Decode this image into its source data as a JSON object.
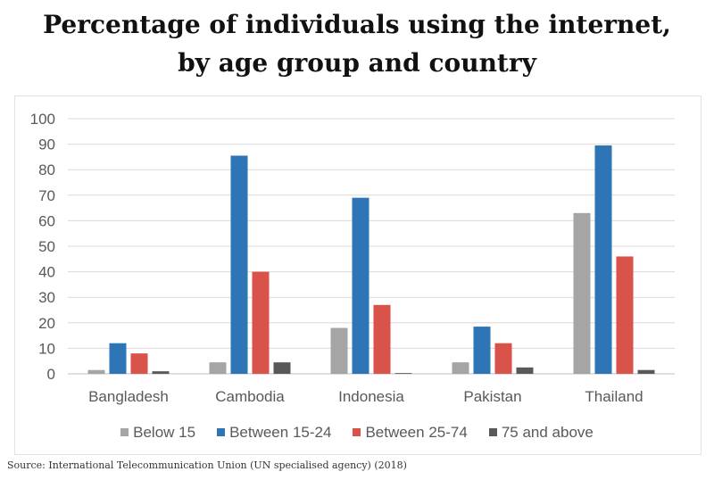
{
  "title_line1": "Percentage of individuals using the internet,",
  "title_line2": "by age group and country",
  "source": "Source: International Telecommunication Union (UN specialised agency) (2018)",
  "chart_data": {
    "type": "bar",
    "title": "Percentage of individuals using the internet, by age group and country",
    "xlabel": "",
    "ylabel": "",
    "ylim": [
      0,
      100
    ],
    "yticks": [
      0,
      10,
      20,
      30,
      40,
      50,
      60,
      70,
      80,
      90,
      100
    ],
    "grid": true,
    "legend_position": "bottom",
    "categories": [
      "Bangladesh",
      "Cambodia",
      "Indonesia",
      "Pakistan",
      "Thailand"
    ],
    "series": [
      {
        "name": "Below 15",
        "color": "#a5a5a5",
        "values": [
          1.5,
          4.5,
          18,
          4.5,
          63
        ]
      },
      {
        "name": "Between 15-24",
        "color": "#2e75b6",
        "values": [
          12,
          85.5,
          69,
          18.5,
          89.5
        ]
      },
      {
        "name": "Between 25-74",
        "color": "#d9534a",
        "values": [
          8,
          40,
          27,
          12,
          46
        ]
      },
      {
        "name": "75 and above",
        "color": "#595959",
        "values": [
          1,
          4.5,
          0.3,
          2.5,
          1.5
        ]
      }
    ]
  }
}
